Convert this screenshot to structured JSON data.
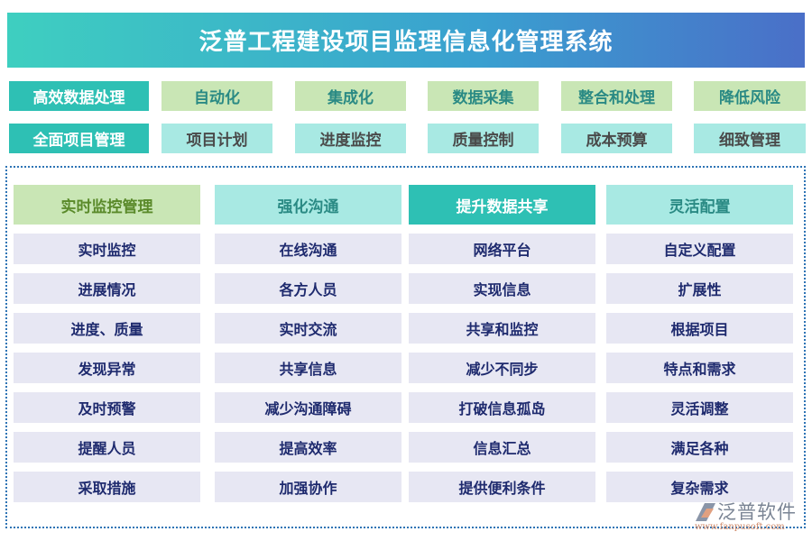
{
  "title": "泛普工程建设项目监理信息化管理系统",
  "row1": [
    "高效数据处理",
    "自动化",
    "集成化",
    "数据采集",
    "整合和处理",
    "降低风险"
  ],
  "row2": [
    "全面项目管理",
    "项目计划",
    "进度监控",
    "质量控制",
    "成本预算",
    "细致管理"
  ],
  "columns": [
    {
      "header": "实时监控管理",
      "items": [
        "实时监控",
        "进展情况",
        "进度、质量",
        "发现异常",
        "及时预警",
        "提醒人员",
        "采取措施"
      ]
    },
    {
      "header": "强化沟通",
      "items": [
        "在线沟通",
        "各方人员",
        "实时交流",
        "共享信息",
        "减少沟通障碍",
        "提高效率",
        "加强协作"
      ]
    },
    {
      "header": "提升数据共享",
      "items": [
        "网络平台",
        "实现信息",
        "共享和监控",
        "减少不同步",
        "打破信息孤岛",
        "信息汇总",
        "提供便利条件"
      ]
    },
    {
      "header": "灵活配置",
      "items": [
        "自定义配置",
        "扩展性",
        "根据项目",
        "特点和需求",
        "灵活调整",
        "满足各种",
        "复杂需求"
      ]
    }
  ],
  "logo": {
    "name": "泛普软件",
    "url": "www.fanpusoft.com"
  },
  "colors": {
    "teal": "#2ec0b4",
    "green": "#c9e6b5",
    "cyan": "#a8e9e3",
    "item_bg": "#e7e7f3",
    "item_text": "#1e2a6e"
  }
}
